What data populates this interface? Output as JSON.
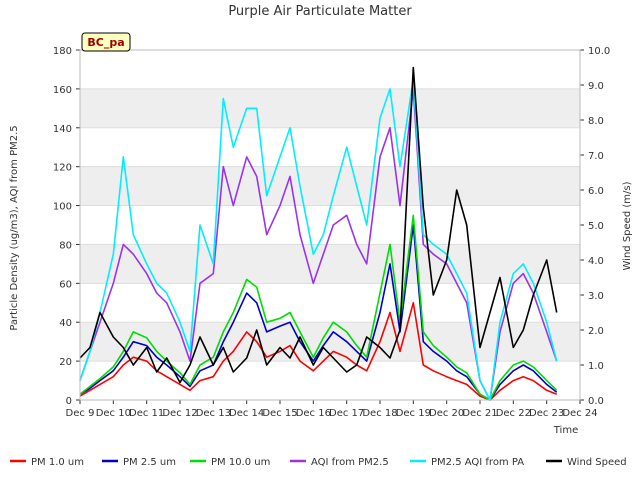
{
  "chart_data": {
    "type": "line",
    "title": "Purple Air Particulate Matter",
    "site_label": "BC_pa",
    "xlabel": "Time",
    "ylabel_left": "Particle Density (ug/m3), AQI from PM2.5",
    "ylabel_right": "Wind Speed (m/s)",
    "ylim_left": [
      0,
      180
    ],
    "ylim_right": [
      0,
      10
    ],
    "xlim": [
      9,
      24
    ],
    "x_ticks": [
      9,
      10,
      11,
      12,
      13,
      14,
      15,
      16,
      17,
      18,
      19,
      20,
      21,
      22,
      23,
      24
    ],
    "x_tick_labels": [
      "Dec 9",
      "Dec 10",
      "Dec 11",
      "Dec 12",
      "Dec 13",
      "Dec 14",
      "Dec 15",
      "Dec 16",
      "Dec 17",
      "Dec 18",
      "Dec 19",
      "Dec 20",
      "Dec 21",
      "Dec 22",
      "Dec 23",
      "Dec 24"
    ],
    "y_left_ticks": [
      0,
      20,
      40,
      60,
      80,
      100,
      120,
      140,
      160,
      180
    ],
    "y_right_ticks": [
      0,
      1,
      2,
      3,
      4,
      5,
      6,
      7,
      8,
      9,
      10
    ],
    "y_right_tick_labels": [
      "0.0",
      "1.0",
      "2.0",
      "3.0",
      "4.0",
      "5.0",
      "6.0",
      "7.0",
      "8.0",
      "9.0",
      "10.0"
    ],
    "grid": "horizontal bands",
    "legend_position": "bottom",
    "x": [
      9.0,
      9.3,
      9.6,
      10.0,
      10.3,
      10.6,
      11.0,
      11.3,
      11.6,
      12.0,
      12.3,
      12.6,
      13.0,
      13.3,
      13.6,
      14.0,
      14.3,
      14.6,
      15.0,
      15.3,
      15.6,
      16.0,
      16.3,
      16.6,
      17.0,
      17.3,
      17.6,
      18.0,
      18.3,
      18.6,
      19.0,
      19.3,
      19.6,
      20.0,
      20.3,
      20.6,
      21.0,
      21.3,
      21.6,
      22.0,
      22.3,
      22.6,
      23.0,
      23.3
    ],
    "series": [
      {
        "name": "PM 1.0 um",
        "axis": "left",
        "color": "#ff0000",
        "values": [
          2,
          5,
          8,
          12,
          18,
          22,
          20,
          15,
          12,
          8,
          5,
          10,
          12,
          20,
          25,
          35,
          30,
          22,
          25,
          28,
          20,
          15,
          20,
          25,
          22,
          18,
          15,
          30,
          45,
          25,
          50,
          18,
          15,
          12,
          10,
          8,
          2,
          0,
          5,
          10,
          12,
          10,
          5,
          3
        ]
      },
      {
        "name": "PM 2.5 um",
        "axis": "left",
        "color": "#0000cc",
        "values": [
          3,
          6,
          10,
          15,
          22,
          30,
          28,
          22,
          18,
          12,
          7,
          15,
          18,
          30,
          40,
          55,
          50,
          35,
          38,
          40,
          30,
          20,
          28,
          35,
          30,
          25,
          20,
          45,
          70,
          35,
          90,
          30,
          25,
          20,
          15,
          12,
          3,
          0,
          8,
          15,
          18,
          15,
          8,
          4
        ]
      },
      {
        "name": "PM 10.0 um",
        "axis": "left",
        "color": "#00dd00",
        "values": [
          3,
          7,
          11,
          17,
          25,
          35,
          32,
          25,
          20,
          14,
          8,
          18,
          22,
          35,
          45,
          62,
          58,
          40,
          42,
          45,
          35,
          22,
          32,
          40,
          35,
          28,
          22,
          55,
          80,
          40,
          95,
          35,
          28,
          22,
          17,
          14,
          3,
          0,
          10,
          18,
          20,
          17,
          10,
          5
        ]
      },
      {
        "name": "AQI from PM2.5",
        "axis": "left",
        "color": "#9933ee",
        "values": [
          10,
          25,
          40,
          60,
          80,
          75,
          65,
          55,
          50,
          35,
          20,
          60,
          65,
          120,
          100,
          125,
          115,
          85,
          100,
          115,
          85,
          60,
          75,
          90,
          95,
          80,
          70,
          125,
          140,
          100,
          160,
          80,
          75,
          70,
          60,
          50,
          10,
          0,
          35,
          60,
          65,
          55,
          35,
          20
        ]
      },
      {
        "name": "PM2.5 AQI from PA",
        "axis": "left",
        "color": "#00eeff",
        "values": [
          10,
          25,
          45,
          75,
          125,
          85,
          70,
          60,
          55,
          40,
          25,
          90,
          70,
          155,
          130,
          150,
          150,
          105,
          125,
          140,
          110,
          75,
          85,
          105,
          130,
          110,
          90,
          145,
          160,
          120,
          165,
          85,
          80,
          75,
          65,
          55,
          10,
          0,
          40,
          65,
          70,
          60,
          40,
          20
        ]
      },
      {
        "name": "Wind Speed",
        "axis": "right",
        "color": "#000000",
        "values": [
          1.2,
          1.5,
          2.5,
          1.8,
          1.5,
          1.0,
          1.5,
          0.8,
          1.2,
          0.5,
          1.0,
          1.8,
          1.0,
          1.5,
          0.8,
          1.2,
          2.0,
          1.0,
          1.5,
          1.2,
          1.8,
          1.0,
          1.5,
          1.2,
          0.8,
          1.0,
          1.8,
          1.5,
          1.2,
          2.0,
          9.5,
          5.5,
          3.0,
          4.0,
          6.0,
          5.0,
          1.5,
          2.5,
          3.5,
          1.5,
          2.0,
          3.0,
          4.0,
          2.5
        ]
      }
    ]
  }
}
